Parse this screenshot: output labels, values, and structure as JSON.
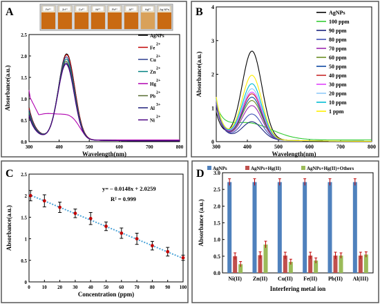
{
  "panel_letters": [
    "A",
    "B",
    "C",
    "D"
  ],
  "inset_vial_labels": [
    "Fe²⁺",
    "Zn²⁺",
    "Cu²⁺",
    "Ni²⁺",
    "Pb²⁺",
    "Al³⁺",
    "Hg²⁺",
    "Ag NPs"
  ],
  "colors": {
    "frame": "#555555",
    "blue_bar": "#4f81bd",
    "red_bar": "#c0504d",
    "green_bar": "#9bbb59",
    "fit": "#4aa3d8",
    "marker": "#c00000"
  },
  "chart_data": [
    {
      "panel": "A",
      "type": "line",
      "xlabel": "Wavelength(nm)",
      "ylabel": "Absorbance(a.u.)",
      "xlim": [
        300,
        800
      ],
      "ylim": [
        0,
        2.5
      ],
      "xticks": [
        "300",
        "400",
        "500",
        "600",
        "700",
        "800"
      ],
      "yticks": [
        "0.0",
        "0.5",
        "1.0",
        "1.5",
        "2.0",
        "2.5"
      ],
      "legend_position": "top-right",
      "series": [
        {
          "name": "AgNPs",
          "sup": "",
          "color": "#000000",
          "peak": 2.0,
          "center": 425,
          "base300": 0.72,
          "dip": 0.68
        },
        {
          "name": "Fe",
          "sup": "2+",
          "color": "#c00000",
          "peak": 1.98,
          "center": 425,
          "base300": 0.7,
          "dip": 0.66
        },
        {
          "name": "Cu",
          "sup": "2+",
          "color": "#2c3e8f",
          "peak": 1.93,
          "center": 424,
          "base300": 0.66,
          "dip": 0.62
        },
        {
          "name": "Zn",
          "sup": "2+",
          "color": "#008080",
          "peak": 1.88,
          "center": 424,
          "base300": 0.62,
          "dip": 0.57
        },
        {
          "name": "Hg",
          "sup": "2+",
          "color": "#b000b0",
          "plateau": 0.6,
          "base300": 1.08
        },
        {
          "name": "Pb",
          "sup": "2+",
          "color": "#556b2f",
          "peak": 1.83,
          "center": 423,
          "base300": 0.58,
          "dip": 0.53
        },
        {
          "name": "Al",
          "sup": "3+",
          "color": "#1f1f7a",
          "peak": 1.79,
          "center": 423,
          "base300": 0.55,
          "dip": 0.5
        },
        {
          "name": "Ni",
          "sup": "2+",
          "color": "#4b0082",
          "peak": 1.76,
          "center": 423,
          "base300": 0.52,
          "dip": 0.47
        }
      ]
    },
    {
      "panel": "B",
      "type": "line",
      "xlabel": "Wavelength(nm)",
      "ylabel": "Absorbance(a.u.)",
      "xlim": [
        300,
        800
      ],
      "ylim": [
        0,
        4
      ],
      "xticks": [
        "300",
        "400",
        "500",
        "600",
        "700",
        "800"
      ],
      "yticks": [
        "0",
        "1",
        "2",
        "3",
        "4"
      ],
      "legend_position": "top-right",
      "series": [
        {
          "name": "AgNPs",
          "color": "#000000",
          "peak": 2.72,
          "base300": 0.75
        },
        {
          "name": "100 ppm",
          "color": "#33cc33",
          "peak": 0.55,
          "base300": 0.85,
          "flat": true
        },
        {
          "name": "90 ppm",
          "color": "#1a237e",
          "peak": 0.62,
          "base300": 0.95
        },
        {
          "name": "80 ppm",
          "color": "#3f51b5",
          "peak": 0.85,
          "base300": 1.0
        },
        {
          "name": "70 ppm",
          "color": "#9c27b0",
          "peak": 1.1,
          "base300": 1.0
        },
        {
          "name": "60 ppm",
          "color": "#6b8e23",
          "peak": 1.25,
          "base300": 1.05
        },
        {
          "name": "50 ppm",
          "color": "#0d47a1",
          "peak": 1.35,
          "base300": 1.05
        },
        {
          "name": "40 ppm",
          "color": "#c62828",
          "peak": 1.45,
          "base300": 1.1
        },
        {
          "name": "30 ppm",
          "color": "#e040fb",
          "peak": 1.5,
          "base300": 1.1
        },
        {
          "name": "20 ppm",
          "color": "#90caf9",
          "peak": 1.6,
          "base300": 1.15
        },
        {
          "name": "10 ppm",
          "color": "#00bcd4",
          "peak": 1.75,
          "base300": 1.15
        },
        {
          "name": "1 ppm",
          "color": "#ffee00",
          "peak": 2.0,
          "base300": 1.2
        }
      ]
    },
    {
      "panel": "C",
      "type": "scatter",
      "xlabel": "Concentration (ppm)",
      "ylabel": "Absorbance(a.u.)",
      "xlim": [
        0,
        100
      ],
      "ylim": [
        0,
        2.5
      ],
      "xticks": [
        "0",
        "10",
        "20",
        "30",
        "40",
        "50",
        "60",
        "70",
        "80",
        "90",
        "100"
      ],
      "yticks": [
        "0",
        "0.5",
        "1",
        "1.5",
        "2",
        "2.5"
      ],
      "annotation_eq": "y= – 0.0148x + 2.0259",
      "annotation_r2": "R² = 0.999",
      "fit": {
        "slope": -0.0148,
        "intercept": 2.0259
      },
      "x": [
        1,
        10,
        20,
        30,
        40,
        50,
        60,
        70,
        80,
        90,
        100
      ],
      "y": [
        2.0,
        1.88,
        1.73,
        1.59,
        1.47,
        1.29,
        1.13,
        1.0,
        0.84,
        0.7,
        0.56
      ],
      "err": [
        0.12,
        0.14,
        0.12,
        0.1,
        0.14,
        0.1,
        0.12,
        0.13,
        0.1,
        0.1,
        0.06
      ]
    },
    {
      "panel": "D",
      "type": "bar",
      "xlabel": "Interfering metal ion",
      "ylabel": "Absorbance (a.u.)",
      "ylim": [
        0,
        3
      ],
      "yticks": [
        "0.0",
        "0.5",
        "1.0",
        "1.5",
        "2.0",
        "2.5",
        "3.0"
      ],
      "legend_position": "top",
      "categories": [
        "Ni(II)",
        "Zn(II)",
        "Cu(II)",
        "Fe(II)",
        "Pb(II)",
        "Al(III)"
      ],
      "series": [
        {
          "name": "AgNPs",
          "color": "#4f81bd",
          "values": [
            2.72,
            2.72,
            2.72,
            2.72,
            2.72,
            2.72
          ],
          "err": [
            0.1,
            0.1,
            0.1,
            0.1,
            0.1,
            0.1
          ]
        },
        {
          "name": "AgNPs+Hg(II)",
          "color": "#c0504d",
          "values": [
            0.5,
            0.53,
            0.52,
            0.52,
            0.52,
            0.52
          ],
          "err": [
            0.1,
            0.1,
            0.1,
            0.1,
            0.1,
            0.1
          ]
        },
        {
          "name": "AgNPs+Hg(II)+Others",
          "color": "#9bbb59",
          "values": [
            0.26,
            0.85,
            0.33,
            0.37,
            0.52,
            0.55
          ],
          "err": [
            0.08,
            0.1,
            0.08,
            0.08,
            0.08,
            0.08
          ]
        }
      ]
    }
  ]
}
